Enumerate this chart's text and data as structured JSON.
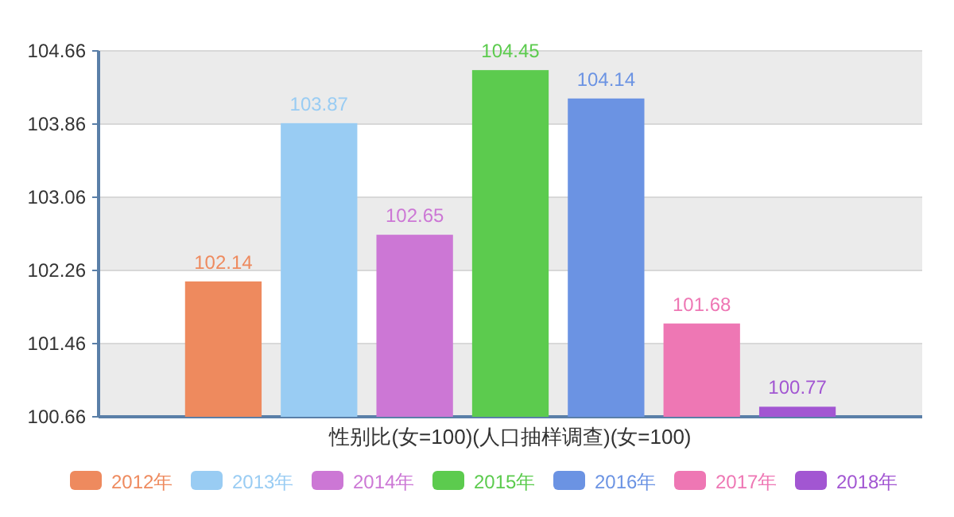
{
  "chart_data": {
    "type": "bar",
    "xlabel": "性别比(女=100)(人口抽样调查)(女=100)",
    "categories": [
      null
    ],
    "series": [
      {
        "name": "2012年",
        "color": "#ee8a5e",
        "values": [
          102.14
        ]
      },
      {
        "name": "2013年",
        "color": "#99ccf3",
        "values": [
          103.87
        ]
      },
      {
        "name": "2014年",
        "color": "#cc77d5",
        "values": [
          102.65
        ]
      },
      {
        "name": "2015年",
        "color": "#5ccb4e",
        "values": [
          104.45
        ]
      },
      {
        "name": "2016年",
        "color": "#6b93e3",
        "values": [
          104.14
        ]
      },
      {
        "name": "2017年",
        "color": "#ee77b4",
        "values": [
          101.68
        ]
      },
      {
        "name": "2018年",
        "color": "#a256d2",
        "values": [
          100.77
        ]
      }
    ],
    "ylim": [
      100.66,
      104.66
    ],
    "yticks": [
      {
        "value": 100.66,
        "label": "100.66"
      },
      {
        "value": 101.46,
        "label": "101.46"
      },
      {
        "value": 102.26,
        "label": "102.26"
      },
      {
        "value": 103.06,
        "label": "103.06"
      },
      {
        "value": 103.86,
        "label": "103.86"
      },
      {
        "value": 104.66,
        "label": "104.66"
      }
    ],
    "grid": "y",
    "legend": "bottom",
    "data_labels": true
  }
}
